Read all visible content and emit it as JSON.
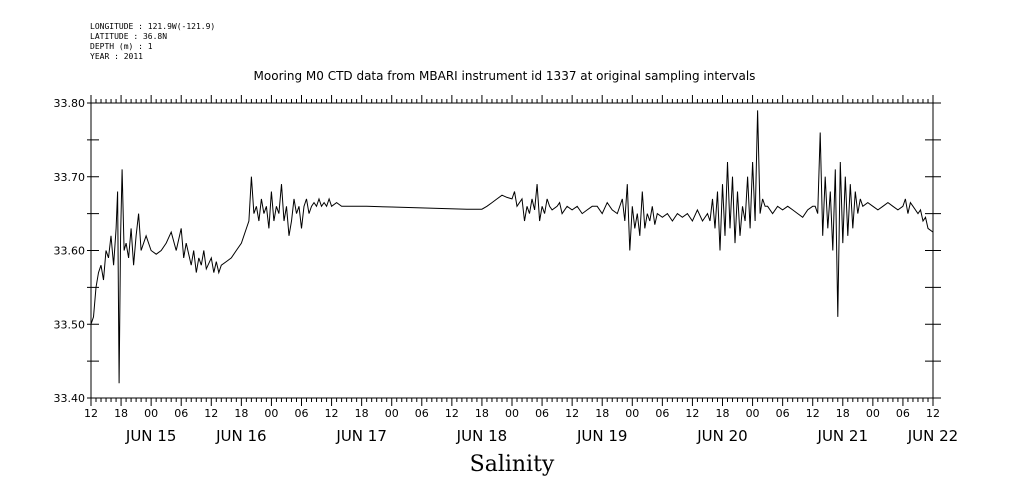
{
  "meta_lines": [
    "LONGITUDE : 121.9W(-121.9)",
    "LATITUDE : 36.8N",
    "DEPTH (m) : 1",
    "YEAR : 2011"
  ],
  "chart_data": {
    "type": "line",
    "title": "Mooring M0 CTD data from MBARI instrument id 1337 at original sampling intervals",
    "xlabel": "Salinity",
    "ylabel": "",
    "ylim": [
      33.4,
      33.8
    ],
    "yticks": [
      33.4,
      33.5,
      33.6,
      33.7,
      33.8
    ],
    "ytick_labels": [
      "33.40",
      "33.50",
      "33.60",
      "33.70",
      "33.80"
    ],
    "xlim_hours": [
      0,
      168
    ],
    "hour_tick_labels": [
      "12",
      "18",
      "00",
      "06",
      "12",
      "18",
      "00",
      "06",
      "12",
      "18",
      "00",
      "06",
      "12",
      "18",
      "00",
      "06",
      "12",
      "18",
      "00",
      "06",
      "12",
      "18",
      "00",
      "06",
      "12",
      "18",
      "00",
      "06",
      "12"
    ],
    "date_labels": [
      "JUN 15",
      "JUN 16",
      "JUN 17",
      "JUN 18",
      "JUN 19",
      "JUN 20",
      "JUN 21",
      "JUN 22"
    ],
    "date_label_hours": [
      12,
      30,
      54,
      78,
      102,
      126,
      150,
      168
    ],
    "grid": false,
    "series": [
      {
        "color": "#000000",
        "points": [
          [
            0,
            33.5
          ],
          [
            0.5,
            33.51
          ],
          [
            1,
            33.55
          ],
          [
            1.5,
            33.57
          ],
          [
            2,
            33.58
          ],
          [
            2.5,
            33.56
          ],
          [
            3,
            33.6
          ],
          [
            3.5,
            33.59
          ],
          [
            4,
            33.62
          ],
          [
            4.5,
            33.58
          ],
          [
            5,
            33.63
          ],
          [
            5.3,
            33.68
          ],
          [
            5.6,
            33.42
          ],
          [
            5.9,
            33.62
          ],
          [
            6.2,
            33.71
          ],
          [
            6.6,
            33.6
          ],
          [
            7,
            33.61
          ],
          [
            7.5,
            33.59
          ],
          [
            8,
            33.63
          ],
          [
            8.5,
            33.58
          ],
          [
            9,
            33.62
          ],
          [
            9.5,
            33.65
          ],
          [
            10,
            33.6
          ],
          [
            11,
            33.62
          ],
          [
            12,
            33.6
          ],
          [
            13,
            33.595
          ],
          [
            14,
            33.6
          ],
          [
            15,
            33.61
          ],
          [
            16,
            33.625
          ],
          [
            17,
            33.6
          ],
          [
            18,
            33.63
          ],
          [
            18.5,
            33.59
          ],
          [
            19,
            33.61
          ],
          [
            20,
            33.58
          ],
          [
            20.5,
            33.6
          ],
          [
            21,
            33.57
          ],
          [
            21.5,
            33.59
          ],
          [
            22,
            33.58
          ],
          [
            22.5,
            33.6
          ],
          [
            23,
            33.575
          ],
          [
            24,
            33.59
          ],
          [
            24.5,
            33.57
          ],
          [
            25,
            33.585
          ],
          [
            25.5,
            33.57
          ],
          [
            26,
            33.58
          ],
          [
            27,
            33.585
          ],
          [
            28,
            33.59
          ],
          [
            29,
            33.6
          ],
          [
            30,
            33.61
          ],
          [
            31,
            33.63
          ],
          [
            31.5,
            33.64
          ],
          [
            32,
            33.7
          ],
          [
            32.5,
            33.65
          ],
          [
            33,
            33.66
          ],
          [
            33.5,
            33.64
          ],
          [
            34,
            33.67
          ],
          [
            34.5,
            33.65
          ],
          [
            35,
            33.66
          ],
          [
            35.5,
            33.63
          ],
          [
            36,
            33.68
          ],
          [
            36.5,
            33.64
          ],
          [
            37,
            33.66
          ],
          [
            37.5,
            33.65
          ],
          [
            38,
            33.69
          ],
          [
            38.5,
            33.64
          ],
          [
            39,
            33.66
          ],
          [
            39.5,
            33.62
          ],
          [
            40,
            33.64
          ],
          [
            40.5,
            33.67
          ],
          [
            41,
            33.65
          ],
          [
            41.5,
            33.66
          ],
          [
            42,
            33.63
          ],
          [
            42.5,
            33.66
          ],
          [
            43,
            33.67
          ],
          [
            43.5,
            33.65
          ],
          [
            44,
            33.66
          ],
          [
            44.5,
            33.665
          ],
          [
            45,
            33.66
          ],
          [
            45.5,
            33.67
          ],
          [
            46,
            33.66
          ],
          [
            46.5,
            33.665
          ],
          [
            47,
            33.66
          ],
          [
            47.5,
            33.67
          ],
          [
            48,
            33.66
          ],
          [
            49,
            33.665
          ],
          [
            50,
            33.66
          ],
          [
            51,
            33.66
          ],
          [
            55,
            33.66
          ],
          [
            60,
            33.659
          ],
          [
            65,
            33.658
          ],
          [
            70,
            33.657
          ],
          [
            75,
            33.656
          ],
          [
            78,
            33.656
          ],
          [
            79,
            33.66
          ],
          [
            80,
            33.665
          ],
          [
            81,
            33.67
          ],
          [
            82,
            33.675
          ],
          [
            83,
            33.672
          ],
          [
            84,
            33.67
          ],
          [
            84.5,
            33.68
          ],
          [
            85,
            33.66
          ],
          [
            86,
            33.67
          ],
          [
            86.5,
            33.64
          ],
          [
            87,
            33.66
          ],
          [
            87.5,
            33.65
          ],
          [
            88,
            33.67
          ],
          [
            88.5,
            33.655
          ],
          [
            89,
            33.69
          ],
          [
            89.5,
            33.64
          ],
          [
            90,
            33.66
          ],
          [
            90.5,
            33.65
          ],
          [
            91,
            33.67
          ],
          [
            91.5,
            33.66
          ],
          [
            92,
            33.655
          ],
          [
            93,
            33.66
          ],
          [
            93.5,
            33.665
          ],
          [
            94,
            33.65
          ],
          [
            95,
            33.66
          ],
          [
            96,
            33.655
          ],
          [
            97,
            33.66
          ],
          [
            98,
            33.65
          ],
          [
            99,
            33.655
          ],
          [
            100,
            33.66
          ],
          [
            100.5,
            33.66
          ],
          [
            101,
            33.66
          ],
          [
            102,
            33.65
          ],
          [
            103,
            33.665
          ],
          [
            104,
            33.655
          ],
          [
            105,
            33.65
          ],
          [
            106,
            33.67
          ],
          [
            106.5,
            33.64
          ],
          [
            107,
            33.69
          ],
          [
            107.5,
            33.6
          ],
          [
            108,
            33.66
          ],
          [
            108.5,
            33.63
          ],
          [
            109,
            33.65
          ],
          [
            109.5,
            33.62
          ],
          [
            110,
            33.68
          ],
          [
            110.5,
            33.63
          ],
          [
            111,
            33.65
          ],
          [
            111.5,
            33.64
          ],
          [
            112,
            33.66
          ],
          [
            112.5,
            33.635
          ],
          [
            113,
            33.65
          ],
          [
            114,
            33.645
          ],
          [
            115,
            33.65
          ],
          [
            116,
            33.64
          ],
          [
            117,
            33.65
          ],
          [
            118,
            33.645
          ],
          [
            119,
            33.65
          ],
          [
            120,
            33.64
          ],
          [
            121,
            33.655
          ],
          [
            122,
            33.64
          ],
          [
            123,
            33.65
          ],
          [
            123.5,
            33.64
          ],
          [
            124,
            33.67
          ],
          [
            124.5,
            33.63
          ],
          [
            125,
            33.68
          ],
          [
            125.5,
            33.6
          ],
          [
            126,
            33.69
          ],
          [
            126.5,
            33.62
          ],
          [
            127,
            33.72
          ],
          [
            127.5,
            33.63
          ],
          [
            128,
            33.7
          ],
          [
            128.5,
            33.61
          ],
          [
            129,
            33.68
          ],
          [
            129.5,
            33.62
          ],
          [
            130,
            33.66
          ],
          [
            130.5,
            33.64
          ],
          [
            131,
            33.7
          ],
          [
            131.5,
            33.63
          ],
          [
            132,
            33.72
          ],
          [
            132.5,
            33.64
          ],
          [
            133,
            33.79
          ],
          [
            133.5,
            33.65
          ],
          [
            134,
            33.67
          ],
          [
            134.5,
            33.66
          ],
          [
            135,
            33.66
          ],
          [
            136,
            33.65
          ],
          [
            137,
            33.66
          ],
          [
            138,
            33.655
          ],
          [
            139,
            33.66
          ],
          [
            140,
            33.655
          ],
          [
            141,
            33.65
          ],
          [
            142,
            33.645
          ],
          [
            143,
            33.655
          ],
          [
            144,
            33.66
          ],
          [
            144.5,
            33.66
          ],
          [
            145,
            33.65
          ],
          [
            145.5,
            33.76
          ],
          [
            146,
            33.62
          ],
          [
            146.5,
            33.7
          ],
          [
            147,
            33.63
          ],
          [
            147.5,
            33.68
          ],
          [
            148,
            33.6
          ],
          [
            148.5,
            33.71
          ],
          [
            149,
            33.51
          ],
          [
            149.5,
            33.72
          ],
          [
            150,
            33.61
          ],
          [
            150.5,
            33.7
          ],
          [
            151,
            33.62
          ],
          [
            151.5,
            33.69
          ],
          [
            152,
            33.63
          ],
          [
            152.5,
            33.68
          ],
          [
            153,
            33.65
          ],
          [
            153.5,
            33.67
          ],
          [
            154,
            33.66
          ],
          [
            155,
            33.665
          ],
          [
            156,
            33.66
          ],
          [
            157,
            33.655
          ],
          [
            158,
            33.66
          ],
          [
            159,
            33.665
          ],
          [
            160,
            33.66
          ],
          [
            161,
            33.655
          ],
          [
            162,
            33.66
          ],
          [
            162.5,
            33.67
          ],
          [
            163,
            33.65
          ],
          [
            163.5,
            33.665
          ],
          [
            164,
            33.66
          ],
          [
            165,
            33.65
          ],
          [
            165.5,
            33.655
          ],
          [
            166,
            33.64
          ],
          [
            166.5,
            33.645
          ],
          [
            167,
            33.63
          ],
          [
            168,
            33.625
          ]
        ]
      }
    ]
  }
}
